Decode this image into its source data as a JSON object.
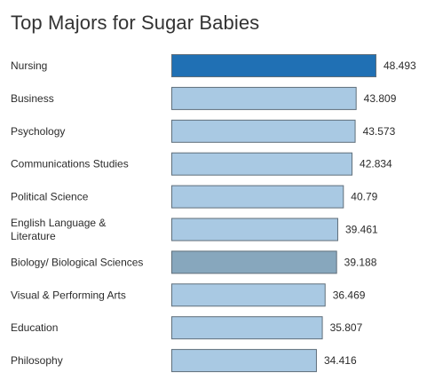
{
  "chart_data": {
    "type": "bar",
    "orientation": "horizontal",
    "title": "Top Majors for Sugar Babies",
    "categories": [
      "Nursing",
      "Business",
      "Psychology",
      "Communications Studies",
      "Political Science",
      "English Language & Literature",
      "Biology/ Biological Sciences",
      "Visual & Performing Arts",
      "Education",
      "Philosophy"
    ],
    "category_lines": [
      [
        "Nursing"
      ],
      [
        "Business"
      ],
      [
        "Psychology"
      ],
      [
        "Communications Studies"
      ],
      [
        "Political Science"
      ],
      [
        "English Language &",
        "Literature"
      ],
      [
        "Biology/ Biological Sciences"
      ],
      [
        "Visual & Performing Arts"
      ],
      [
        "Education"
      ],
      [
        "Philosophy"
      ]
    ],
    "values": [
      48.493,
      43.809,
      43.573,
      42.834,
      40.79,
      39.461,
      39.188,
      36.469,
      35.807,
      34.416
    ],
    "value_labels": [
      "48.493",
      "43.809",
      "43.573",
      "42.834",
      "40.79",
      "39.461",
      "39.188",
      "36.469",
      "35.807",
      "34.416"
    ],
    "colors": {
      "default": "#a9c9e3",
      "highlight": "#2070b4",
      "accent": "#87a7bd",
      "stroke": "#5f6e7a"
    },
    "bar_colors": [
      "highlight",
      "default",
      "default",
      "default",
      "default",
      "default",
      "accent",
      "default",
      "default",
      "default"
    ],
    "xlim": [
      0,
      48.493
    ],
    "grid": false,
    "legend": "none"
  }
}
